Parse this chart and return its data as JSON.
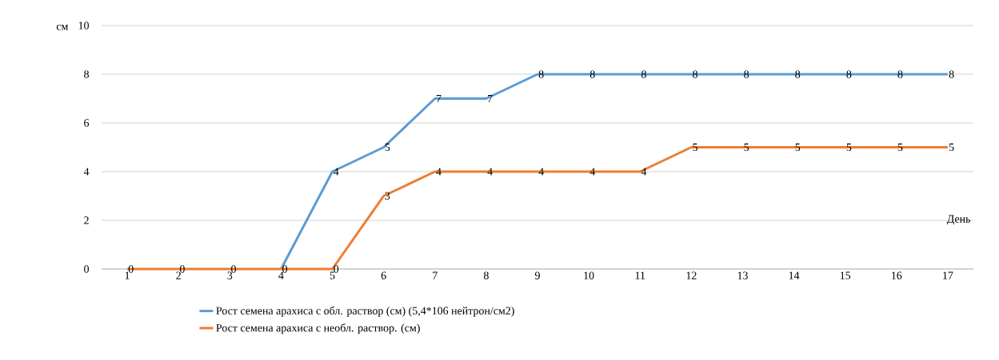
{
  "chart_data": {
    "type": "line",
    "xlabel": "День",
    "ylabel": "см",
    "x": [
      1,
      2,
      3,
      4,
      5,
      6,
      7,
      8,
      9,
      10,
      11,
      12,
      13,
      14,
      15,
      16,
      17
    ],
    "xlim": [
      0.5,
      17.5
    ],
    "xticks": [
      1,
      2,
      3,
      4,
      5,
      6,
      7,
      8,
      9,
      10,
      11,
      12,
      13,
      14,
      15,
      16,
      17
    ],
    "ylim": [
      0,
      10
    ],
    "yticks": [
      0,
      2,
      4,
      6,
      8,
      10
    ],
    "grid": "y",
    "legend": "bottom",
    "marker": "none",
    "line_style": "solid",
    "series": [
      {
        "name": "Рост семена арахиса с обл. раствор (см) (5,4*106 нейтрон/см2)",
        "color": "#5b9bd5",
        "values": [
          null,
          null,
          null,
          0,
          4,
          5,
          7,
          7,
          8,
          8,
          8,
          8,
          8,
          8,
          8,
          8,
          8
        ],
        "value_labels": [
          null,
          null,
          null,
          null,
          "4",
          "5",
          "7",
          "7",
          "8",
          "8",
          "8",
          "8",
          "8",
          "8",
          "8",
          "8",
          "8"
        ]
      },
      {
        "name": "Рост семена арахиса с необл. раствор. (см)",
        "color": "#ed7d31",
        "values": [
          0,
          0,
          0,
          0,
          0,
          3,
          4,
          4,
          4,
          4,
          4,
          5,
          5,
          5,
          5,
          5,
          5
        ],
        "value_labels": [
          "0",
          "0",
          "0",
          "0",
          "0",
          "3",
          "4",
          "4",
          "4",
          "4",
          "4",
          "5",
          "5",
          "5",
          "5",
          "5",
          "5"
        ]
      }
    ]
  }
}
